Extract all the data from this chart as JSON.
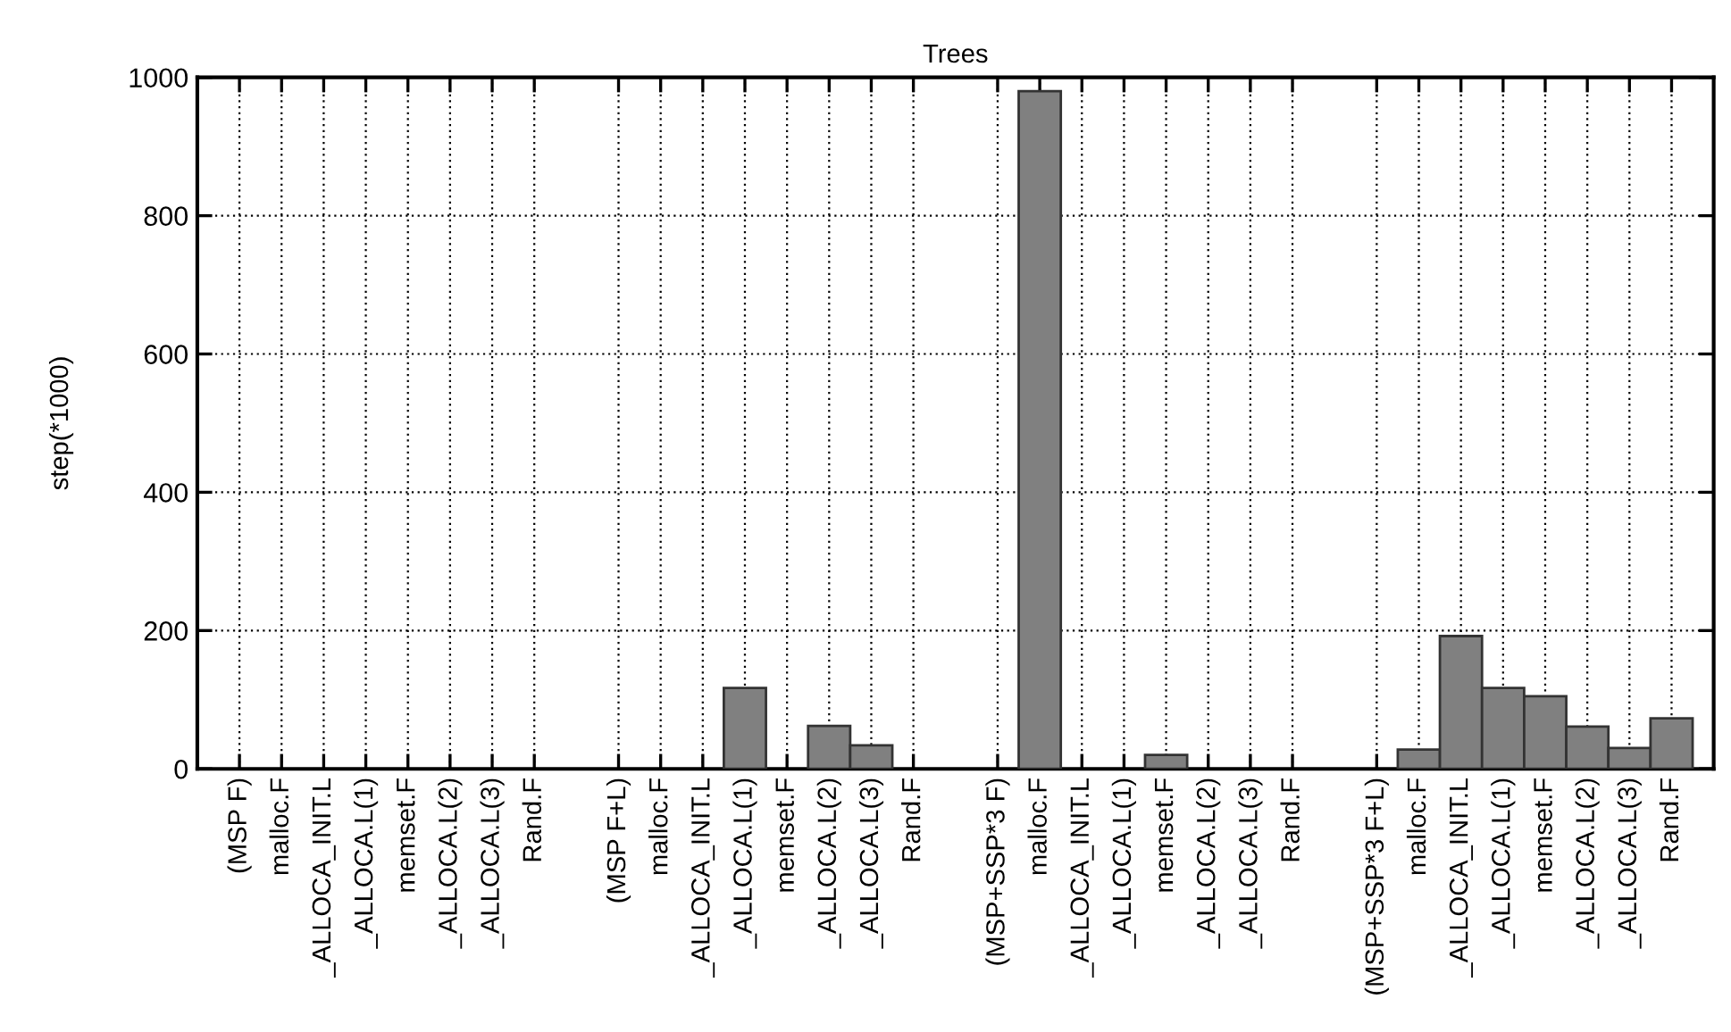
{
  "chart_data": {
    "type": "bar",
    "title": "Trees",
    "ylabel": "step(*1000)",
    "categories": [
      "(MSP F)",
      "malloc.F",
      "_ALLOCA_INIT.L",
      "_ALLOCA.L(1)",
      "memset.F",
      "_ALLOCA.L(2)",
      "_ALLOCA.L(3)",
      "Rand.F",
      null,
      "(MSP F+L)",
      "malloc.F",
      "_ALLOCA_INIT.L",
      "_ALLOCA.L(1)",
      "memset.F",
      "_ALLOCA.L(2)",
      "_ALLOCA.L(3)",
      "Rand.F",
      null,
      "(MSP+SSP*3 F)",
      "malloc.F",
      "_ALLOCA_INIT.L",
      "_ALLOCA.L(1)",
      "memset.F",
      "_ALLOCA.L(2)",
      "_ALLOCA.L(3)",
      "Rand.F",
      null,
      "(MSP+SSP*3 F+L)",
      "malloc.F",
      "_ALLOCA_INIT.L",
      "_ALLOCA.L(1)",
      "memset.F",
      "_ALLOCA.L(2)",
      "_ALLOCA.L(3)",
      "Rand.F"
    ],
    "values": [
      0,
      0,
      0,
      0,
      0,
      0,
      0,
      0,
      null,
      0,
      0,
      0,
      117,
      0,
      62,
      34,
      0,
      null,
      0,
      980,
      0,
      0,
      20,
      0,
      0,
      0,
      null,
      0,
      28,
      192,
      117,
      105,
      61,
      30,
      73
    ],
    "color": "#808080",
    "ylim": [
      0,
      1000
    ],
    "yticks": [
      0,
      200,
      400,
      600,
      800,
      1000
    ],
    "grid": true
  }
}
